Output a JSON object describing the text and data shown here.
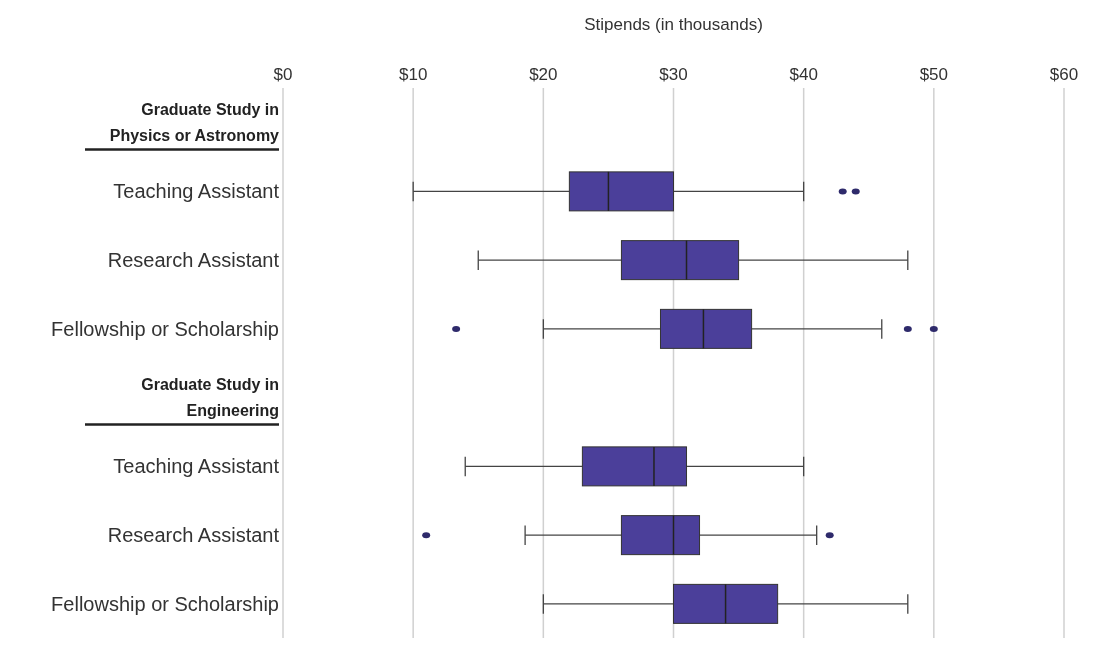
{
  "chart_data": {
    "type": "box",
    "orientation": "horizontal",
    "xlabel": "Stipends (in thousands)",
    "categories": [
      "Graduate Study in Physics or Astronomy",
      "Teaching Assistant",
      "Research Assistant",
      "Fellowship or Scholarship",
      "Graduate Study in Engineering",
      "Teaching Assistant",
      "Research Assistant",
      "Fellowship or Scholarship"
    ],
    "boxes": [
      null,
      {
        "low": 10,
        "q1": 22,
        "median": 25,
        "q3": 30,
        "high": 40,
        "outliers": [
          43,
          44
        ]
      },
      {
        "low": 15,
        "q1": 26,
        "median": 31,
        "q3": 35,
        "high": 48
      },
      {
        "low": 20,
        "q1": 29,
        "median": 32.3,
        "q3": 36,
        "high": 46,
        "outliers": [
          13.3,
          48,
          50
        ]
      },
      null,
      {
        "low": 14,
        "q1": 23,
        "median": 28.5,
        "q3": 31,
        "high": 40
      },
      {
        "low": 18.6,
        "q1": 26,
        "median": 30,
        "q3": 32,
        "high": 41,
        "outliers": [
          11,
          42
        ]
      },
      {
        "low": 20,
        "q1": 30,
        "median": 34,
        "q3": 38,
        "high": 48
      }
    ],
    "color": "#4b3f9a",
    "xlim": [
      0,
      60
    ],
    "xticks": [
      {
        "value": 0,
        "label": "$0"
      },
      {
        "value": 10,
        "label": "$10"
      },
      {
        "value": 20,
        "label": "$20"
      },
      {
        "value": 30,
        "label": "$30"
      },
      {
        "value": 40,
        "label": "$40"
      },
      {
        "value": 50,
        "label": "$50"
      },
      {
        "value": 60,
        "label": "$60"
      }
    ],
    "grid": "x"
  }
}
